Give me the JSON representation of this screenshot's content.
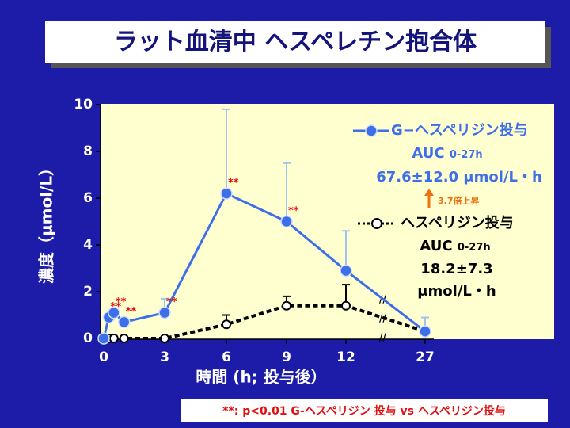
{
  "chart_data": {
    "type": "line",
    "title": "ラット血清中 ヘスペレチン抱合体",
    "ylabel": "濃度（μmol/L）",
    "xlabel": "時間 (h; 投与後）",
    "x": [
      0,
      0.25,
      0.5,
      1,
      3,
      6,
      9,
      12,
      27
    ],
    "xlim": [
      0,
      27
    ],
    "xticks": [
      0,
      3,
      6,
      9,
      12,
      27
    ],
    "ylim": [
      0,
      10
    ],
    "yticks": [
      0,
      2,
      4,
      6,
      8,
      10
    ],
    "series": [
      {
        "name": "G−ヘスペリジン投与",
        "color": "#3f6fe8",
        "errorcolor": "#9fc3f2",
        "values": [
          0,
          0.9,
          1.1,
          0.7,
          1.1,
          6.2,
          5.0,
          2.9,
          0.3
        ],
        "errors": [
          null,
          null,
          null,
          null,
          0.6,
          3.6,
          2.5,
          1.7,
          0.6
        ],
        "marks": [
          null,
          "**",
          "**",
          "**",
          "**",
          "**",
          "**",
          null,
          null
        ],
        "auc_label": "AUC",
        "auc_range": "0-27h",
        "auc_value": "67.6±12.0 μmol/L・h"
      },
      {
        "name": "ヘスペリジン投与",
        "color": "#000000",
        "errorcolor": "#000000",
        "values": [
          0,
          0,
          0,
          0,
          0,
          0.6,
          1.4,
          1.4,
          0.3
        ],
        "errors": [
          null,
          null,
          null,
          null,
          null,
          0.4,
          0.4,
          0.9,
          null
        ],
        "marks": [
          null,
          null,
          null,
          null,
          null,
          null,
          null,
          null,
          null
        ],
        "auc_label": "AUC",
        "auc_range": "0-27h",
        "auc_value": "18.2±7.3 μmol/L・h"
      }
    ],
    "ratio_label": "3.7倍上昇",
    "footnote": "**: p<0.01 G-ヘスペリジン 投与 vs ヘスペリジン投与"
  }
}
